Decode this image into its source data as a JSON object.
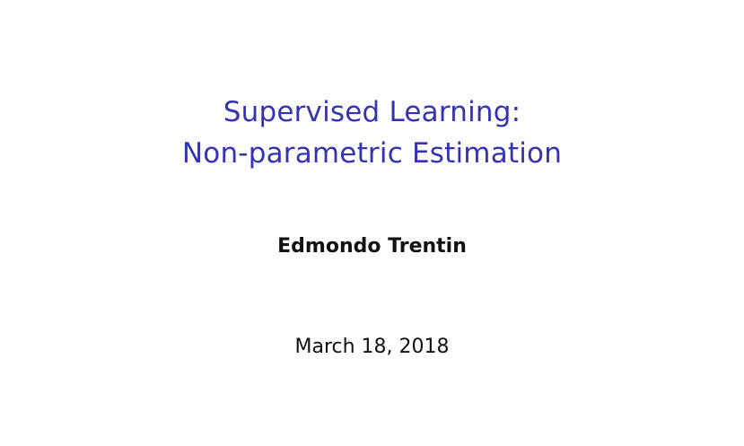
{
  "slide": {
    "title_lines": [
      "Supervised Learning:",
      "Non-parametric Estimation"
    ],
    "author": "Edmondo Trentin",
    "date": "March 18, 2018"
  },
  "colors": {
    "title": "#3434b2",
    "text": "#111111",
    "background": "#ffffff"
  }
}
